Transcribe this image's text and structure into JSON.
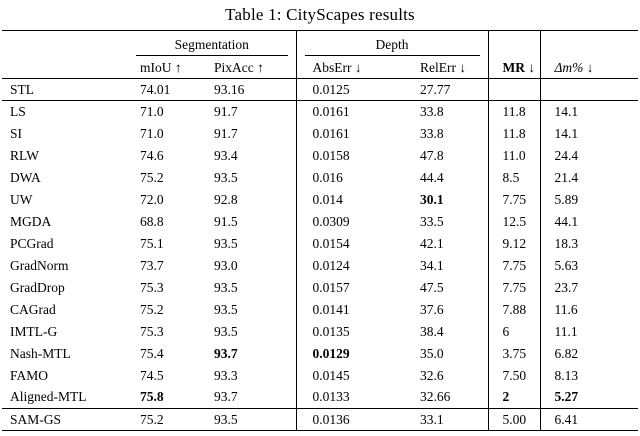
{
  "title": "Table 1: CityScapes results",
  "colors": {
    "text": "#000000",
    "background": "#ffffff",
    "rule": "#000000"
  },
  "table": {
    "groups": {
      "segmentation": "Segmentation",
      "depth": "Depth"
    },
    "columns": [
      "mIoU ↑",
      "PixAcc ↑",
      "AbsErr ↓",
      "RelErr ↓",
      "MR ↓",
      "Δm% ↓"
    ],
    "rows": [
      {
        "method": "STL",
        "values": [
          "74.01",
          "93.16",
          "0.0125",
          "27.77",
          "",
          ""
        ],
        "bold": [],
        "rule_above": false
      },
      {
        "method": "LS",
        "values": [
          "71.0",
          "91.7",
          "0.0161",
          "33.8",
          "11.8",
          "14.1"
        ],
        "bold": [],
        "rule_above": true
      },
      {
        "method": "SI",
        "values": [
          "71.0",
          "91.7",
          "0.0161",
          "33.8",
          "11.8",
          "14.1"
        ],
        "bold": [],
        "rule_above": false
      },
      {
        "method": "RLW",
        "values": [
          "74.6",
          "93.4",
          "0.0158",
          "47.8",
          "11.0",
          "24.4"
        ],
        "bold": [],
        "rule_above": false
      },
      {
        "method": "DWA",
        "values": [
          "75.2",
          "93.5",
          "0.016",
          "44.4",
          "8.5",
          "21.4"
        ],
        "bold": [],
        "rule_above": false
      },
      {
        "method": "UW",
        "values": [
          "72.0",
          "92.8",
          "0.014",
          "30.1",
          "7.75",
          "5.89"
        ],
        "bold": [
          3
        ],
        "rule_above": false
      },
      {
        "method": "MGDA",
        "values": [
          "68.8",
          "91.5",
          "0.0309",
          "33.5",
          "12.5",
          "44.1"
        ],
        "bold": [],
        "rule_above": false
      },
      {
        "method": "PCGrad",
        "values": [
          "75.1",
          "93.5",
          "0.0154",
          "42.1",
          "9.12",
          "18.3"
        ],
        "bold": [],
        "rule_above": false
      },
      {
        "method": "GradNorm",
        "values": [
          "73.7",
          "93.0",
          "0.0124",
          "34.1",
          "7.75",
          "5.63"
        ],
        "bold": [],
        "rule_above": false
      },
      {
        "method": "GradDrop",
        "values": [
          "75.3",
          "93.5",
          "0.0157",
          "47.5",
          "7.75",
          "23.7"
        ],
        "bold": [],
        "rule_above": false
      },
      {
        "method": "CAGrad",
        "values": [
          "75.2",
          "93.5",
          "0.0141",
          "37.6",
          "7.88",
          "11.6"
        ],
        "bold": [],
        "rule_above": false
      },
      {
        "method": "IMTL-G",
        "values": [
          "75.3",
          "93.5",
          "0.0135",
          "38.4",
          "6",
          "11.1"
        ],
        "bold": [],
        "rule_above": false
      },
      {
        "method": "Nash-MTL",
        "values": [
          "75.4",
          "93.7",
          "0.0129",
          "35.0",
          "3.75",
          "6.82"
        ],
        "bold": [
          1,
          2
        ],
        "rule_above": false
      },
      {
        "method": "FAMO",
        "values": [
          "74.5",
          "93.3",
          "0.0145",
          "32.6",
          "7.50",
          "8.13"
        ],
        "bold": [],
        "rule_above": false
      },
      {
        "method": "Aligned-MTL",
        "values": [
          "75.8",
          "93.7",
          "0.0133",
          "32.66",
          "2",
          "5.27"
        ],
        "bold": [
          0,
          4,
          5
        ],
        "rule_above": false
      },
      {
        "method": "SAM-GS",
        "values": [
          "75.2",
          "93.5",
          "0.0136",
          "33.1",
          "5.00",
          "6.41"
        ],
        "bold": [],
        "rule_above": true
      }
    ]
  }
}
